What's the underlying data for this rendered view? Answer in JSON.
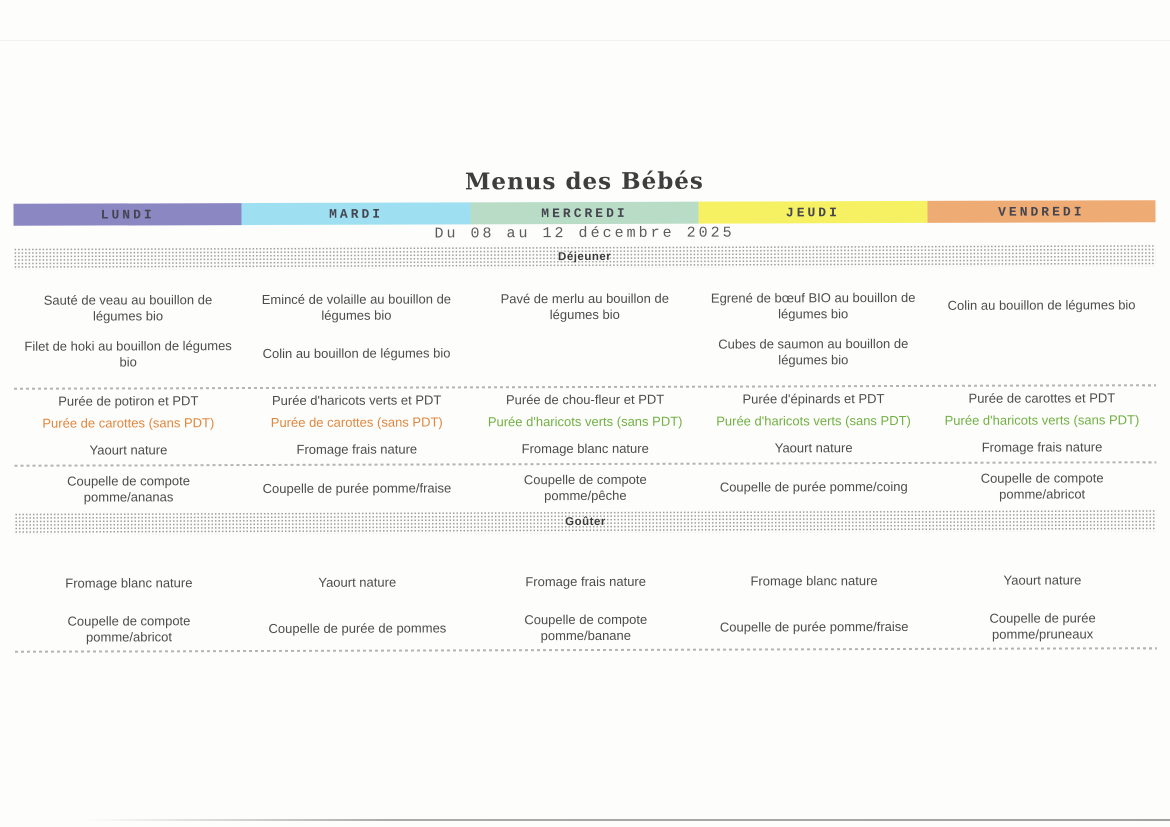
{
  "page": {
    "title": "Menus des Bébés",
    "date_range": "Du 08 au 12 décembre 2025"
  },
  "days": [
    {
      "label": "LUNDI",
      "color": "#8a87c3"
    },
    {
      "label": "MARDI",
      "color": "#9edff2"
    },
    {
      "label": "MERCREDI",
      "color": "#b9dcc6"
    },
    {
      "label": "JEUDI",
      "color": "#f5f163"
    },
    {
      "label": "VENDREDI",
      "color": "#eeab74"
    }
  ],
  "colors": {
    "alt_orange": "#e0873d",
    "alt_green": "#72b043"
  },
  "menu": {
    "dejeuner": {
      "label": "Déjeuner",
      "mains": [
        {
          "l1": "Sauté de veau au bouillon de légumes bio",
          "l2": "Filet de hoki au bouillon de légumes bio"
        },
        {
          "l1": "Emincé de volaille au bouillon de légumes bio",
          "l2": "Colin au bouillon de légumes bio"
        },
        {
          "l1": "Pavé de merlu au bouillon de légumes bio",
          "l2": ""
        },
        {
          "l1": "Egrené de bœuf BIO au bouillon de légumes bio",
          "l2": "Cubes de saumon au bouillon de légumes bio"
        },
        {
          "l1": "Colin au bouillon de légumes bio",
          "l2": ""
        }
      ],
      "purees": [
        {
          "l1": "Purée de potiron et PDT",
          "l2": "Purée de carottes (sans PDT)",
          "c": "orange"
        },
        {
          "l1": "Purée d'haricots verts et PDT",
          "l2": "Purée de carottes (sans PDT)",
          "c": "orange"
        },
        {
          "l1": "Purée de chou-fleur et PDT",
          "l2": "Purée d'haricots verts (sans PDT)",
          "c": "green"
        },
        {
          "l1": "Purée d'épinards et PDT",
          "l2": "Purée d'haricots verts (sans PDT)",
          "c": "green"
        },
        {
          "l1": "Purée de carottes et PDT",
          "l2": "Purée d'haricots verts (sans PDT)",
          "c": "green"
        }
      ],
      "dairy": [
        "Yaourt nature",
        "Fromage frais nature",
        "Fromage blanc nature",
        "Yaourt nature",
        "Fromage frais nature"
      ],
      "dessert": [
        "Coupelle de compote pomme/ananas",
        "Coupelle de purée pomme/fraise",
        "Coupelle de compote pomme/pêche",
        "Coupelle de purée pomme/coing",
        "Coupelle de compote pomme/abricot"
      ]
    },
    "gouter": {
      "label": "Goûter",
      "dairy": [
        "Fromage blanc nature",
        "Yaourt nature",
        "Fromage frais nature",
        "Fromage blanc nature",
        "Yaourt nature"
      ],
      "dessert": [
        "Coupelle de compote pomme/abricot",
        "Coupelle de purée de pommes",
        "Coupelle de compote pomme/banane",
        "Coupelle de purée pomme/fraise",
        "Coupelle de purée pomme/pruneaux"
      ]
    }
  }
}
